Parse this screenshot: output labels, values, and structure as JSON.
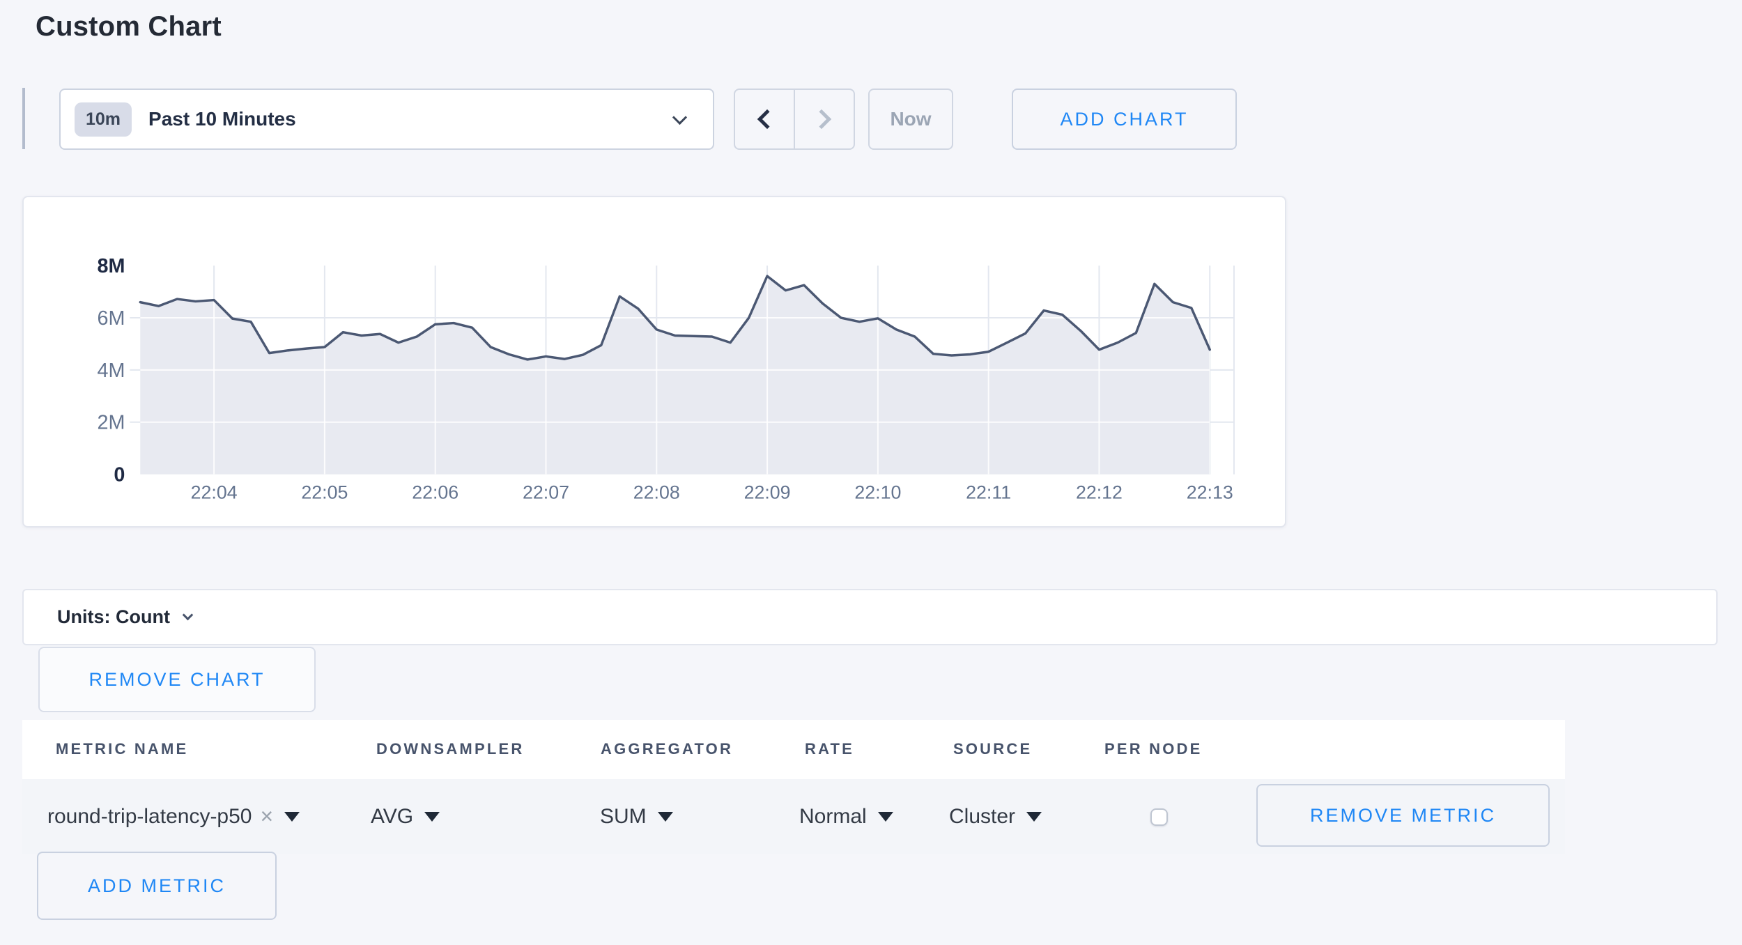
{
  "page": {
    "title": "Custom Chart",
    "background": "#f5f6fa",
    "accent_blue": "#1f87f5"
  },
  "toolbar": {
    "time_scale_badge": "10m",
    "time_scale_label": "Past 10 Minutes",
    "now_label": "Now",
    "add_chart_label": "ADD CHART"
  },
  "units_bar": {
    "label": "Units: Count"
  },
  "buttons": {
    "remove_chart": "REMOVE CHART",
    "add_metric": "ADD METRIC"
  },
  "icons": {
    "clear": "×"
  },
  "chart_data": {
    "type": "area",
    "title": "",
    "xlabel": "",
    "ylabel": "",
    "unit": "count",
    "ylim_millions": [
      0,
      8
    ],
    "grid": true,
    "legend": "none",
    "y_ticks": [
      {
        "label": "8M",
        "value_m": 8,
        "strong": true
      },
      {
        "label": "6M",
        "value_m": 6,
        "strong": false
      },
      {
        "label": "4M",
        "value_m": 4,
        "strong": false
      },
      {
        "label": "2M",
        "value_m": 2,
        "strong": false
      },
      {
        "label": "0",
        "value_m": 0,
        "strong": true
      }
    ],
    "x_ticks": [
      "22:04",
      "22:05",
      "22:06",
      "22:07",
      "22:08",
      "22:09",
      "22:10",
      "22:11",
      "22:12",
      "22:13"
    ],
    "x_tick_indices": [
      4,
      10,
      16,
      22,
      28,
      34,
      40,
      46,
      52,
      58
    ],
    "series": [
      {
        "name": "round-trip-latency-p50",
        "start_time": "22:03:20",
        "interval_seconds": 10,
        "values_millions": [
          6.6,
          6.45,
          6.72,
          6.63,
          6.68,
          5.97,
          5.85,
          4.65,
          4.75,
          4.82,
          4.88,
          5.45,
          5.32,
          5.38,
          5.05,
          5.28,
          5.75,
          5.8,
          5.62,
          4.88,
          4.6,
          4.4,
          4.52,
          4.42,
          4.58,
          4.95,
          6.82,
          6.35,
          5.55,
          5.32,
          5.3,
          5.28,
          5.05,
          6.0,
          7.6,
          7.05,
          7.25,
          6.55,
          6.0,
          5.85,
          5.98,
          5.55,
          5.28,
          4.62,
          4.56,
          4.6,
          4.7,
          5.05,
          5.4,
          6.28,
          6.12,
          5.5,
          4.78,
          5.05,
          5.42,
          7.3,
          6.6,
          6.38,
          4.78
        ]
      }
    ],
    "colors": {
      "line": "#4b5873",
      "fill": "#e8eaf1",
      "grid": "#e3e7ef",
      "grid_on_fill": "rgba(255,255,255,0.85)",
      "tick": "#64748f",
      "tick_strong": "#1f2a44"
    }
  },
  "metrics_table": {
    "columns": [
      "METRIC NAME",
      "DOWNSAMPLER",
      "AGGREGATOR",
      "RATE",
      "SOURCE",
      "PER NODE"
    ],
    "rows": [
      {
        "metric_name": "round-trip-latency-p50",
        "downsampler": "AVG",
        "aggregator": "SUM",
        "rate": "Normal",
        "source": "Cluster",
        "per_node_checked": false,
        "remove_label": "REMOVE METRIC"
      }
    ]
  }
}
